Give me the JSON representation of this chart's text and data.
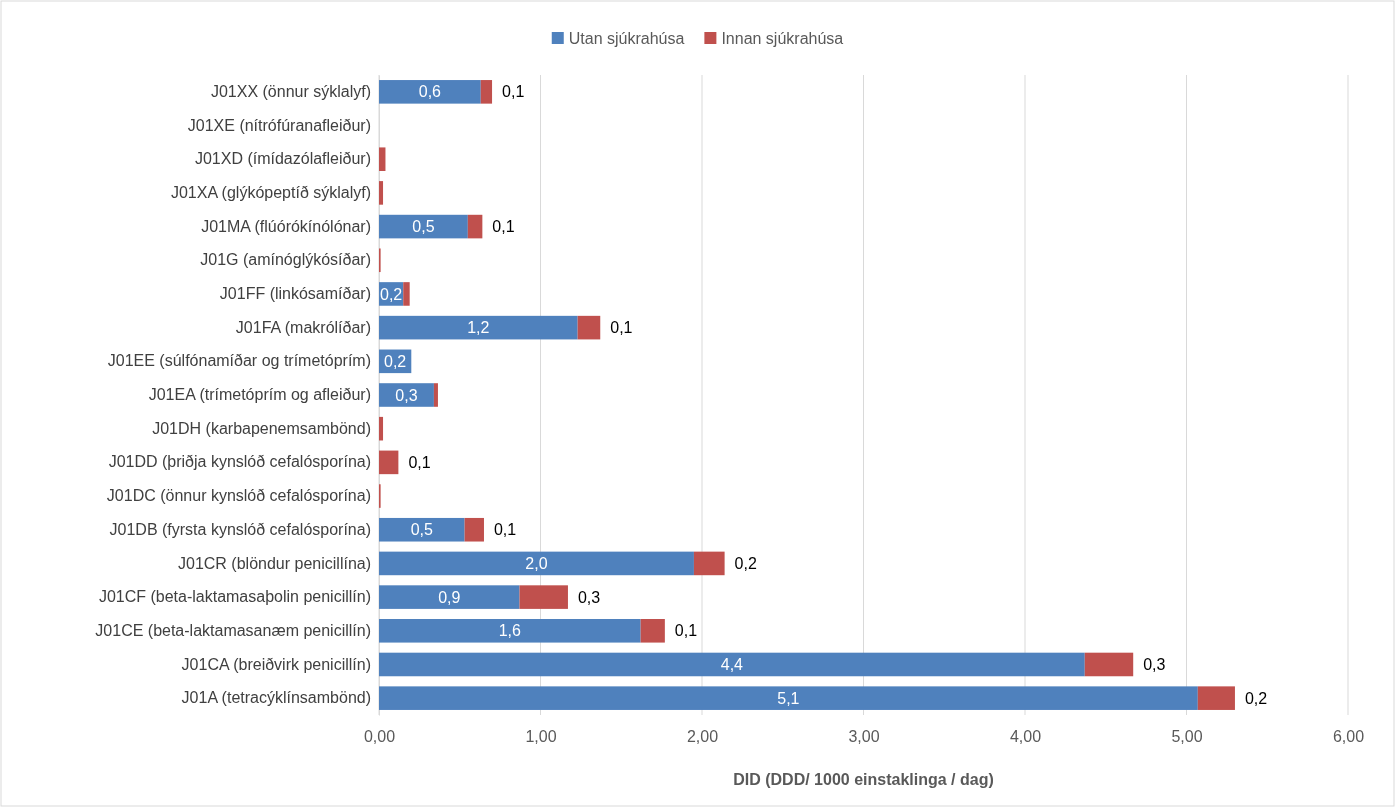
{
  "chart_data": {
    "type": "bar",
    "orientation": "horizontal",
    "stacked": true,
    "xlabel": "DID (DDD/ 1000 einstaklinga / dag)",
    "categories": [
      "J01XX (önnur sýklalyf)",
      "J01XE (nítrófúranafleiður)",
      "J01XD (ímídazólafleiður)",
      "J01XA (glýkópeptíð sýklalyf)",
      "J01MA (flúórókínólónar)",
      "J01G (amínóglýkósíðar)",
      "J01FF (linkósamíðar)",
      "J01FA (makrólíðar)",
      "J01EE (súlfónamíðar og trímetóprím)",
      "J01EA (trímetóprím og afleiður)",
      "J01DH (karbapenemsambönd)",
      "J01DD (þriðja kynslóð cefalósporína)",
      "J01DC (önnur kynslóð cefalósporína)",
      "J01DB (fyrsta kynslóð cefalósporína)",
      "J01CR (blöndur penicillína)",
      "J01CF (beta-laktamasaþolin penicillín)",
      "J01CE (beta-laktamasanæm penicillín)",
      "J01CA (breiðvirk penicillín)",
      "J01A (tetracýklínsambönd)"
    ],
    "series": [
      {
        "name": "Utan sjúkrahúsa",
        "color": "#4f81bd",
        "values": [
          0.63,
          0,
          0,
          0,
          0.55,
          0,
          0.15,
          1.23,
          0.2,
          0.34,
          0,
          0,
          0,
          0.53,
          1.95,
          0.87,
          1.62,
          4.37,
          5.07
        ],
        "value_labels": [
          "0,6",
          null,
          null,
          null,
          "0,5",
          null,
          "0,2",
          "1,2",
          "0,2",
          "0,3",
          null,
          null,
          null,
          "0,5",
          "2,0",
          "0,9",
          "1,6",
          "4,4",
          "5,1"
        ]
      },
      {
        "name": "Innan sjúkrahúsa",
        "color": "#c0504d",
        "values": [
          0.07,
          0,
          0.04,
          0.025,
          0.09,
          0.01,
          0.04,
          0.14,
          0,
          0.025,
          0.025,
          0.12,
          0.01,
          0.12,
          0.19,
          0.3,
          0.15,
          0.3,
          0.23
        ],
        "value_labels": [
          "0,1",
          null,
          null,
          null,
          "0,1",
          null,
          null,
          "0,1",
          null,
          null,
          null,
          "0,1",
          null,
          "0,1",
          "0,2",
          "0,3",
          "0,1",
          "0,3",
          "0,2"
        ]
      }
    ],
    "xlim": [
      0,
      6
    ],
    "xticks": [
      {
        "value": 0,
        "label": "0,00"
      },
      {
        "value": 1,
        "label": "1,00"
      },
      {
        "value": 2,
        "label": "2,00"
      },
      {
        "value": 3,
        "label": "3,00"
      },
      {
        "value": 4,
        "label": "4,00"
      },
      {
        "value": 5,
        "label": "5,00"
      },
      {
        "value": 6,
        "label": "6,00"
      }
    ],
    "grid": "x",
    "legend": "top"
  }
}
